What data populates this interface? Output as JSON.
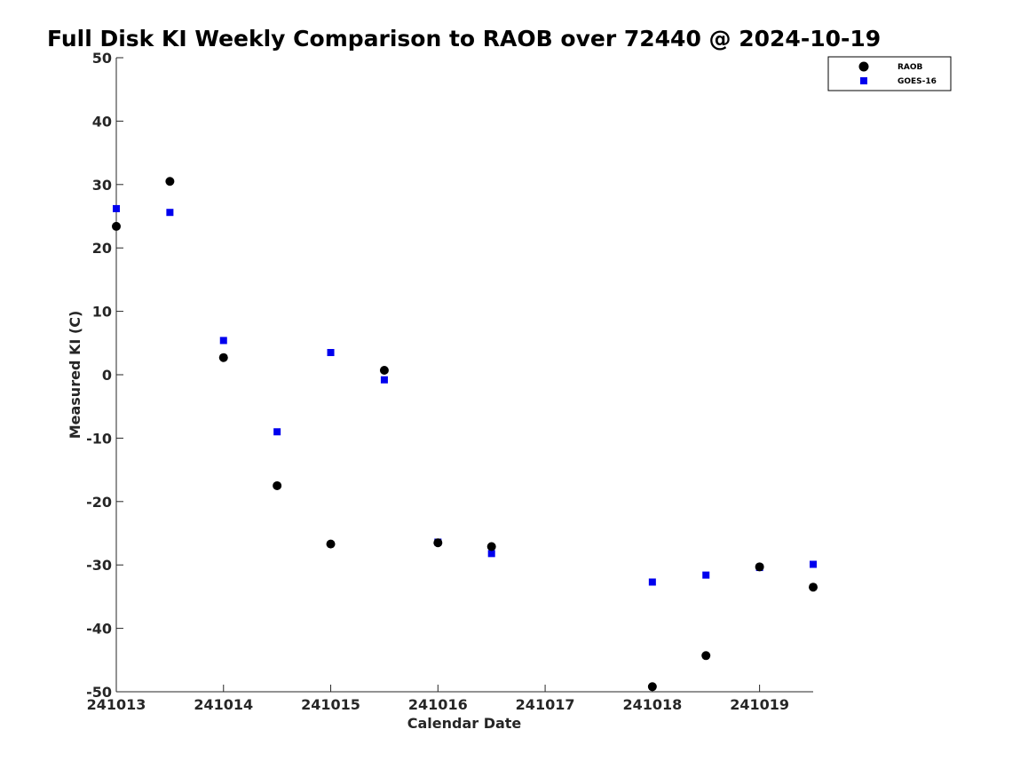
{
  "chart_data": {
    "type": "scatter",
    "title": "Full Disk KI Weekly Comparison to RAOB over 72440 @ 2024-10-19",
    "xlabel": "Calendar Date",
    "ylabel": "Measured KI (C)",
    "xlim": [
      241013,
      241019.5
    ],
    "ylim": [
      -50,
      50
    ],
    "x_ticks": [
      241013,
      241014,
      241015,
      241016,
      241017,
      241018,
      241019
    ],
    "x_tick_labels": [
      "241013",
      "241014",
      "241015",
      "241016",
      "241017",
      "241018",
      "241019"
    ],
    "y_ticks": [
      50,
      40,
      30,
      20,
      10,
      0,
      -10,
      -20,
      -30,
      -40,
      -50
    ],
    "y_tick_labels": [
      "50",
      "40",
      "30",
      "20",
      "10",
      "0",
      "-10",
      "-20",
      "-30",
      "-40",
      "-50"
    ],
    "grid": false,
    "legend_position": "top-right",
    "series": [
      {
        "name": "RAOB",
        "marker": "circle",
        "color": "#000000",
        "x": [
          241013,
          241013.5,
          241014,
          241014.5,
          241015,
          241015.5,
          241016,
          241016.5,
          241018,
          241018.5,
          241019,
          241019.5
        ],
        "y": [
          23.4,
          30.5,
          2.7,
          -17.5,
          -26.7,
          0.7,
          -26.5,
          -27.1,
          -49.2,
          -44.3,
          -30.3,
          -33.5
        ]
      },
      {
        "name": "GOES-16",
        "marker": "square",
        "color": "#0000ee",
        "x": [
          241013,
          241013.5,
          241014,
          241014.5,
          241015,
          241015.5,
          241016,
          241016.5,
          241018,
          241018.5,
          241019,
          241019.5
        ],
        "y": [
          26.2,
          25.6,
          5.4,
          -9.0,
          3.5,
          -0.8,
          -26.4,
          -28.2,
          -32.7,
          -31.6,
          -30.4,
          -29.9
        ]
      }
    ]
  }
}
